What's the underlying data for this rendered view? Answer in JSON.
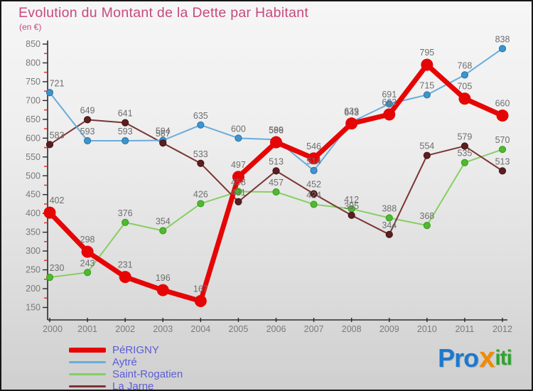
{
  "title": "Evolution du Montant de la Dette par Habitant",
  "subtitle": "(en €)",
  "colors": {
    "title": "#c8497d",
    "background_top": "#f6f6f6",
    "background_bottom": "#cfcfcf",
    "axis": "#2a2a2a",
    "minor_tick": "#e23b3b",
    "tick_label": "#7a7a7a",
    "value_label": "#6e6e6e",
    "legend_text": "#5c5cd6"
  },
  "chart_data": {
    "type": "line",
    "x": [
      2000,
      2001,
      2002,
      2003,
      2004,
      2005,
      2006,
      2007,
      2008,
      2009,
      2010,
      2011,
      2012
    ],
    "series": [
      {
        "name": "PéRIGNY",
        "line_color": "#e60505",
        "dot_color": "#e60505",
        "dot_stroke": "#c50000",
        "thick": true,
        "values": [
          402,
          298,
          231,
          196,
          167,
          497,
          589,
          546,
          639,
          663,
          795,
          705,
          660
        ]
      },
      {
        "name": "Aytré",
        "line_color": "#6aacda",
        "dot_color": "#3d95cd",
        "dot_stroke": "#2b79ad",
        "thick": false,
        "values": [
          721,
          593,
          593,
          594,
          635,
          600,
          596,
          514,
          643,
          691,
          715,
          768,
          838
        ]
      },
      {
        "name": "Saint-Rogatien",
        "line_color": "#86cf63",
        "dot_color": "#4fba30",
        "dot_stroke": "#3da022",
        "thick": false,
        "values": [
          230,
          243,
          376,
          354,
          426,
          458,
          457,
          424,
          412,
          388,
          368,
          535,
          570
        ]
      },
      {
        "name": "La Jarne",
        "line_color": "#7b3434",
        "dot_color": "#5c1f1f",
        "dot_stroke": "#471515",
        "thick": false,
        "values": [
          583,
          649,
          641,
          587,
          533,
          431,
          513,
          452,
          395,
          344,
          554,
          579,
          513
        ]
      }
    ],
    "ylim": [
      150,
      850
    ],
    "ytick_step": 50,
    "yminor_step": 25,
    "grid": false,
    "legend_position": "bottom-left",
    "value_labels_shown": true
  },
  "logo": {
    "parts": [
      {
        "text": "Pro",
        "color": "#1b79cf"
      },
      {
        "text": "x",
        "color": "#f28a00"
      },
      {
        "text": "iti",
        "color": "#2fa42f"
      }
    ]
  }
}
